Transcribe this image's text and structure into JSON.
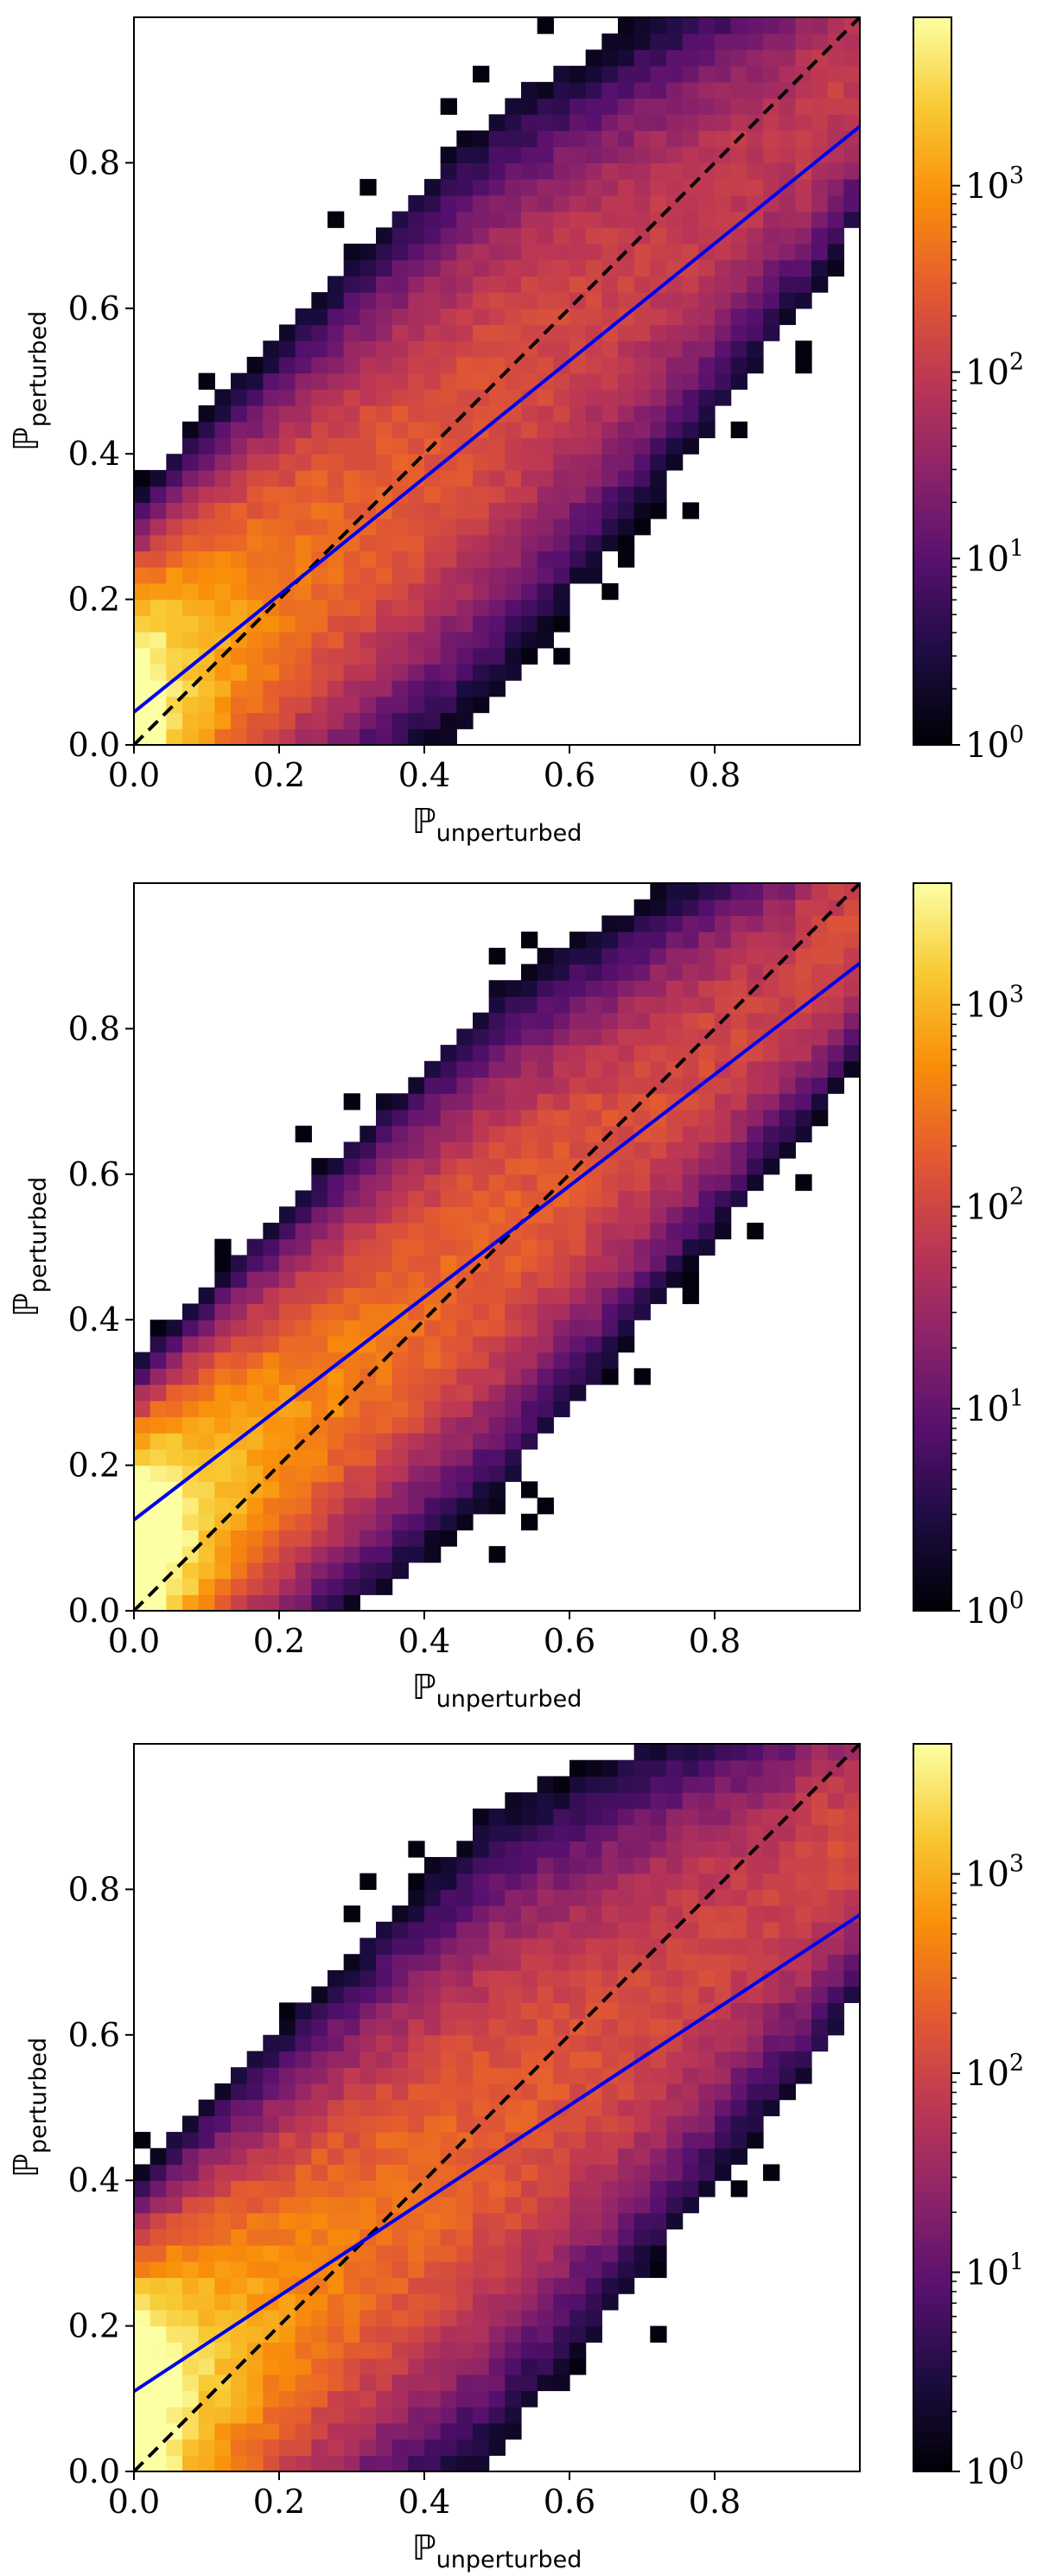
{
  "chart_data": [
    {
      "type": "heatmap",
      "xlabel": {
        "symbol": "ℙ",
        "subscript": "unperturbed"
      },
      "ylabel": {
        "symbol": "ℙ",
        "subscript": "perturbed"
      },
      "xlim": [
        0,
        1
      ],
      "ylim": [
        0,
        1
      ],
      "x_ticks": [
        "0.0",
        "0.2",
        "0.4",
        "0.6",
        "0.8"
      ],
      "y_ticks": [
        "0.0",
        "0.2",
        "0.4",
        "0.6",
        "0.8"
      ],
      "color_scale": "log",
      "colormap": "inferno",
      "colorbar_range": [
        1,
        8000
      ],
      "colorbar_ticks": [
        {
          "base": "10",
          "exp": "0"
        },
        {
          "base": "10",
          "exp": "1"
        },
        {
          "base": "10",
          "exp": "2"
        },
        {
          "base": "10",
          "exp": "3"
        }
      ],
      "density": {
        "spread": 0.1,
        "core_x": 0.03,
        "outliers": 26
      },
      "reference_line": {
        "style": "dashed",
        "color": "#000000",
        "from": [
          0,
          0
        ],
        "to": [
          1,
          1
        ]
      },
      "fit_line": {
        "color": "#0000ee",
        "intercept": 0.045,
        "slope": 0.805
      }
    },
    {
      "type": "heatmap",
      "xlabel": {
        "symbol": "ℙ",
        "subscript": "unperturbed"
      },
      "ylabel": {
        "symbol": "ℙ",
        "subscript": "perturbed"
      },
      "xlim": [
        0,
        1
      ],
      "ylim": [
        0,
        1
      ],
      "x_ticks": [
        "0.0",
        "0.2",
        "0.4",
        "0.6",
        "0.8"
      ],
      "y_ticks": [
        "0.0",
        "0.2",
        "0.4",
        "0.6",
        "0.8"
      ],
      "color_scale": "log",
      "colormap": "inferno",
      "colorbar_range": [
        1,
        4000
      ],
      "colorbar_ticks": [
        {
          "base": "10",
          "exp": "0"
        },
        {
          "base": "10",
          "exp": "1"
        },
        {
          "base": "10",
          "exp": "2"
        },
        {
          "base": "10",
          "exp": "3"
        }
      ],
      "density": {
        "spread": 0.085,
        "core_x": 0.035,
        "outliers": 22
      },
      "reference_line": {
        "style": "dashed",
        "color": "#000000",
        "from": [
          0,
          0
        ],
        "to": [
          1,
          1
        ]
      },
      "fit_line": {
        "color": "#0000ee",
        "intercept": 0.125,
        "slope": 0.765
      }
    },
    {
      "type": "heatmap",
      "xlabel": {
        "symbol": "ℙ",
        "subscript": "unperturbed"
      },
      "ylabel": {
        "symbol": "ℙ",
        "subscript": "perturbed"
      },
      "xlim": [
        0,
        1
      ],
      "ylim": [
        0,
        1
      ],
      "x_ticks": [
        "0.0",
        "0.2",
        "0.4",
        "0.6",
        "0.8"
      ],
      "y_ticks": [
        "0.0",
        "0.2",
        "0.4",
        "0.6",
        "0.8"
      ],
      "color_scale": "log",
      "colormap": "inferno",
      "colorbar_range": [
        1,
        4500
      ],
      "colorbar_ticks": [
        {
          "base": "10",
          "exp": "0"
        },
        {
          "base": "10",
          "exp": "1"
        },
        {
          "base": "10",
          "exp": "2"
        },
        {
          "base": "10",
          "exp": "3"
        }
      ],
      "density": {
        "spread": 0.11,
        "core_x": 0.035,
        "outliers": 48
      },
      "reference_line": {
        "style": "dashed",
        "color": "#000000",
        "from": [
          0,
          0
        ],
        "to": [
          1,
          1
        ]
      },
      "fit_line": {
        "color": "#0000ee",
        "intercept": 0.11,
        "slope": 0.655
      }
    }
  ]
}
